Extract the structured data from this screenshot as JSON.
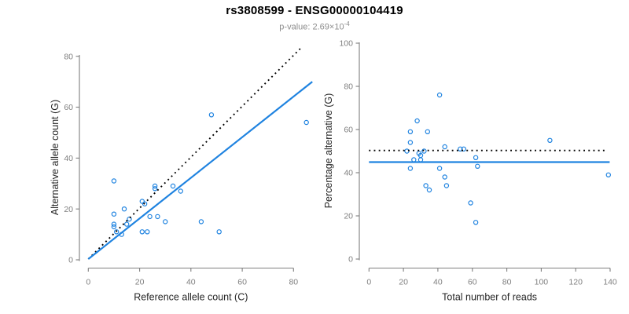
{
  "header": {
    "title": "rs3808599 - ENSG00000104419",
    "pvalue_prefix": "p-value: 2.69×10",
    "pvalue_exponent": "-4"
  },
  "colors": {
    "point_blue": "#1F83E0",
    "line_blue": "#1F83E0",
    "dotted_black": "#000000",
    "axis_gray": "#7f7f7f",
    "tick_label_gray": "#7f7f7f",
    "axis_title_dark": "#262626",
    "subtitle_gray": "#8c8c8c"
  },
  "chart_data": [
    {
      "type": "scatter",
      "panel": "left",
      "xlabel": "Reference allele count (C)",
      "ylabel": "Alternative allele count (G)",
      "xlim": [
        0,
        85
      ],
      "ylim": [
        0,
        80
      ],
      "xticks": [
        0,
        20,
        40,
        60,
        80
      ],
      "yticks": [
        0,
        20,
        40,
        60,
        80
      ],
      "grid": false,
      "legend": false,
      "points": [
        [
          10,
          31
        ],
        [
          48,
          57
        ],
        [
          85,
          54
        ],
        [
          26,
          29
        ],
        [
          26,
          28
        ],
        [
          33,
          29
        ],
        [
          36,
          27
        ],
        [
          21,
          23
        ],
        [
          22,
          22
        ],
        [
          14,
          20
        ],
        [
          10,
          18
        ],
        [
          16,
          16
        ],
        [
          15,
          14
        ],
        [
          24,
          17
        ],
        [
          27,
          17
        ],
        [
          30,
          15
        ],
        [
          44,
          15
        ],
        [
          10,
          14
        ],
        [
          10,
          13
        ],
        [
          13,
          10
        ],
        [
          21,
          11
        ],
        [
          23,
          11
        ],
        [
          51,
          11
        ],
        [
          11,
          11
        ]
      ],
      "lines": [
        {
          "name": "identity-line",
          "style": "dotted",
          "color": "#000000",
          "from": [
            0,
            0.3
          ],
          "to": [
            83.2,
            83.6
          ]
        },
        {
          "name": "regression-line",
          "style": "solid",
          "color": "#1F83E0",
          "from": [
            0,
            0.3
          ],
          "to": [
            87.3,
            70.0
          ]
        }
      ]
    },
    {
      "type": "scatter",
      "panel": "right",
      "xlabel": "Total number of reads",
      "ylabel": "Percentage alternative (G)",
      "xlim": [
        0,
        140
      ],
      "ylim": [
        0,
        100
      ],
      "xticks": [
        0,
        20,
        40,
        60,
        80,
        100,
        120,
        140
      ],
      "yticks": [
        0,
        20,
        40,
        60,
        80,
        100
      ],
      "grid": false,
      "legend": false,
      "points": [
        [
          41,
          76
        ],
        [
          28,
          64
        ],
        [
          24,
          59
        ],
        [
          34,
          59
        ],
        [
          24,
          54
        ],
        [
          44,
          52
        ],
        [
          53,
          51
        ],
        [
          55,
          51
        ],
        [
          22,
          50
        ],
        [
          32,
          50
        ],
        [
          29,
          49
        ],
        [
          30,
          48
        ],
        [
          30,
          46
        ],
        [
          26,
          46
        ],
        [
          62,
          47
        ],
        [
          105,
          55
        ],
        [
          24,
          42
        ],
        [
          41,
          42
        ],
        [
          63,
          43
        ],
        [
          44,
          38
        ],
        [
          139,
          39
        ],
        [
          33,
          34
        ],
        [
          35,
          32
        ],
        [
          45,
          34
        ],
        [
          59,
          26
        ],
        [
          62,
          17
        ]
      ],
      "lines": [
        {
          "name": "expected-ratio-line",
          "style": "dotted",
          "color": "#000000",
          "from": [
            0,
            50.3
          ],
          "to": [
            137.5,
            50.3
          ]
        },
        {
          "name": "fitted-ratio-line",
          "style": "solid",
          "color": "#1F83E0",
          "from": [
            0,
            44.9
          ],
          "to": [
            139.7,
            44.9
          ]
        }
      ]
    }
  ]
}
